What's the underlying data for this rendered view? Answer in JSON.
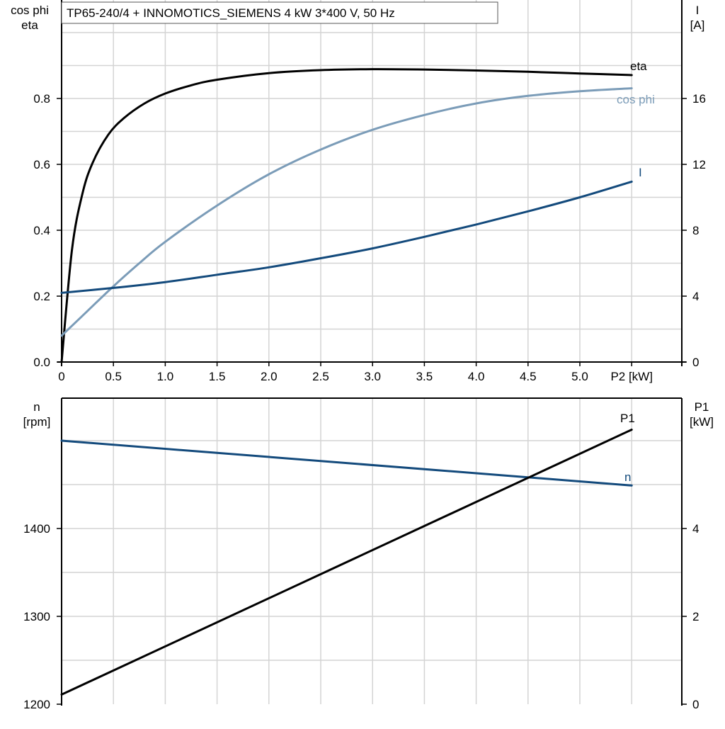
{
  "title": "TP65-240/4 + INNOMOTICS_SIEMENS   4 kW   3*400 V, 50 Hz",
  "colors": {
    "eta": "#000000",
    "cosphi": "#7b9cb8",
    "current": "#134a7c",
    "speed": "#134a7c",
    "p1": "#000000",
    "grid": "#d4d4d4"
  },
  "chart_data": [
    {
      "type": "line",
      "x_label": "P2 [kW]",
      "left_axis_label": [
        "cos phi",
        "eta"
      ],
      "right_axis_label": [
        "I",
        "[A]"
      ],
      "xlim": [
        0,
        6
      ],
      "ylim_left": [
        0,
        1
      ],
      "ylim_right": [
        0,
        20
      ],
      "x_ticks": [
        "0",
        "0.5",
        "1.0",
        "1.5",
        "2.0",
        "2.5",
        "3.0",
        "3.5",
        "4.0",
        "4.5",
        "5.0",
        "P2 [kW]"
      ],
      "left_ticks": [
        "0.0",
        "0.2",
        "0.4",
        "0.6",
        "0.8"
      ],
      "right_ticks": [
        "0",
        "4",
        "8",
        "12",
        "16"
      ],
      "grid": true,
      "series": [
        {
          "name": "eta",
          "axis": "left",
          "x": [
            0,
            0.1,
            0.2,
            0.3,
            0.45,
            0.6,
            0.8,
            1.0,
            1.25,
            1.5,
            2.0,
            2.5,
            3.0,
            3.5,
            4.0,
            4.5,
            5.0,
            5.5
          ],
          "y": [
            0.0,
            0.34,
            0.51,
            0.605,
            0.69,
            0.74,
            0.785,
            0.815,
            0.84,
            0.857,
            0.877,
            0.886,
            0.889,
            0.888,
            0.885,
            0.881,
            0.876,
            0.871
          ]
        },
        {
          "name": "cos phi",
          "axis": "left",
          "x": [
            0,
            0.25,
            0.5,
            0.75,
            1.0,
            1.5,
            2.0,
            2.5,
            3.0,
            3.5,
            4.0,
            4.5,
            5.0,
            5.5
          ],
          "y": [
            0.08,
            0.155,
            0.23,
            0.3,
            0.365,
            0.475,
            0.57,
            0.645,
            0.705,
            0.75,
            0.785,
            0.808,
            0.822,
            0.831
          ]
        },
        {
          "name": "I",
          "axis": "right",
          "x": [
            0,
            0.5,
            1.0,
            1.5,
            2.0,
            2.5,
            3.0,
            3.5,
            4.0,
            4.5,
            5.0,
            5.5
          ],
          "y": [
            4.2,
            4.5,
            4.85,
            5.3,
            5.75,
            6.3,
            6.9,
            7.6,
            8.35,
            9.15,
            10.0,
            10.95
          ]
        }
      ]
    },
    {
      "type": "line",
      "x_label": "P2 [kW]",
      "left_axis_label": [
        "n",
        "[rpm]"
      ],
      "right_axis_label": [
        "P1",
        "[kW]"
      ],
      "xlim": [
        0,
        6
      ],
      "ylim_left": [
        1200,
        1550
      ],
      "ylim_right": [
        0,
        7
      ],
      "left_ticks": [
        "1200",
        "1300",
        "1400"
      ],
      "right_ticks": [
        "0",
        "2",
        "4"
      ],
      "grid": true,
      "series": [
        {
          "name": "n",
          "axis": "left",
          "x": [
            0,
            5.5
          ],
          "y": [
            1500,
            1449
          ]
        },
        {
          "name": "P1",
          "axis": "right",
          "x": [
            0,
            5.5
          ],
          "y": [
            0.22,
            6.25
          ]
        }
      ]
    }
  ]
}
